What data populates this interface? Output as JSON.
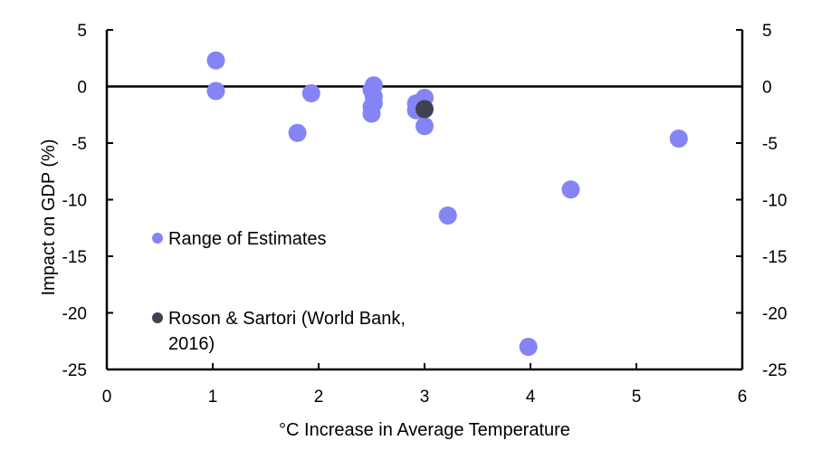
{
  "chart_data": {
    "type": "scatter",
    "xlabel": "°C Increase in Average Temperature",
    "ylabel": "Impact on GDP (%)",
    "xlim": [
      0,
      6
    ],
    "ylim": [
      -25,
      5
    ],
    "x_ticks": [
      "0",
      "1",
      "2",
      "3",
      "4",
      "5",
      "6"
    ],
    "y_ticks": [
      "5",
      "0",
      "-5",
      "-10",
      "-15",
      "-20",
      "-25"
    ],
    "y_ticks_right": [
      "5",
      "0",
      "-5",
      "-10",
      "-15",
      "-20",
      "-25"
    ],
    "grid": false,
    "legend_placement": "inside-left",
    "series": [
      {
        "name": "Range of Estimates",
        "color": "#8484f5",
        "points": [
          {
            "x": 1.03,
            "y": 2.3
          },
          {
            "x": 1.03,
            "y": -0.4
          },
          {
            "x": 1.8,
            "y": -4.1
          },
          {
            "x": 1.93,
            "y": -0.6
          },
          {
            "x": 2.5,
            "y": -0.3
          },
          {
            "x": 2.52,
            "y": 0.1
          },
          {
            "x": 2.52,
            "y": -0.9
          },
          {
            "x": 2.52,
            "y": -1.5
          },
          {
            "x": 2.5,
            "y": -1.8
          },
          {
            "x": 2.5,
            "y": -2.4
          },
          {
            "x": 2.92,
            "y": -1.5
          },
          {
            "x": 2.92,
            "y": -2.1
          },
          {
            "x": 3.0,
            "y": -1.0
          },
          {
            "x": 3.0,
            "y": -3.5
          },
          {
            "x": 3.22,
            "y": -11.4
          },
          {
            "x": 3.98,
            "y": -23.0
          },
          {
            "x": 4.38,
            "y": -9.1
          },
          {
            "x": 5.4,
            "y": -4.6
          }
        ]
      },
      {
        "name": "Roson & Sartori (World Bank, 2016)",
        "legend_lines": [
          "Roson & Sartori (World Bank,",
          "2016)"
        ],
        "color": "#41414f",
        "points": [
          {
            "x": 3.0,
            "y": -2.0
          }
        ]
      }
    ]
  }
}
